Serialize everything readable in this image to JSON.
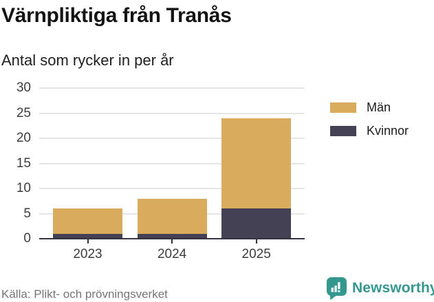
{
  "title": "Värnpliktiga från Tranås",
  "subtitle": "Antal som rycker in per år",
  "source": "Källa: Plikt- och prövningsverket",
  "brand": {
    "name": "Newsworthy",
    "color": "#35988F"
  },
  "colors": {
    "men": "#D8AC5C",
    "women": "#434153",
    "grid": "#E5E5E5",
    "axis": "#35333F",
    "tick_text": "#3D3D3D",
    "muted_text": "#757575"
  },
  "chart_data": {
    "type": "bar",
    "stacked": true,
    "title": "Värnpliktiga från Tranås",
    "subtitle": "Antal som rycker in per år",
    "categories": [
      "2023",
      "2024",
      "2025"
    ],
    "series": [
      {
        "name": "Män",
        "color": "#D8AC5C",
        "values": [
          5,
          7,
          18
        ]
      },
      {
        "name": "Kvinnor",
        "color": "#434153",
        "values": [
          1,
          1,
          6
        ]
      }
    ],
    "stack_totals": [
      6,
      8,
      24
    ],
    "ylim": [
      0,
      30
    ],
    "yticks": [
      0,
      5,
      10,
      15,
      20,
      25,
      30
    ],
    "xlabel": "",
    "ylabel": "",
    "grid": true,
    "legend_position": "right"
  }
}
